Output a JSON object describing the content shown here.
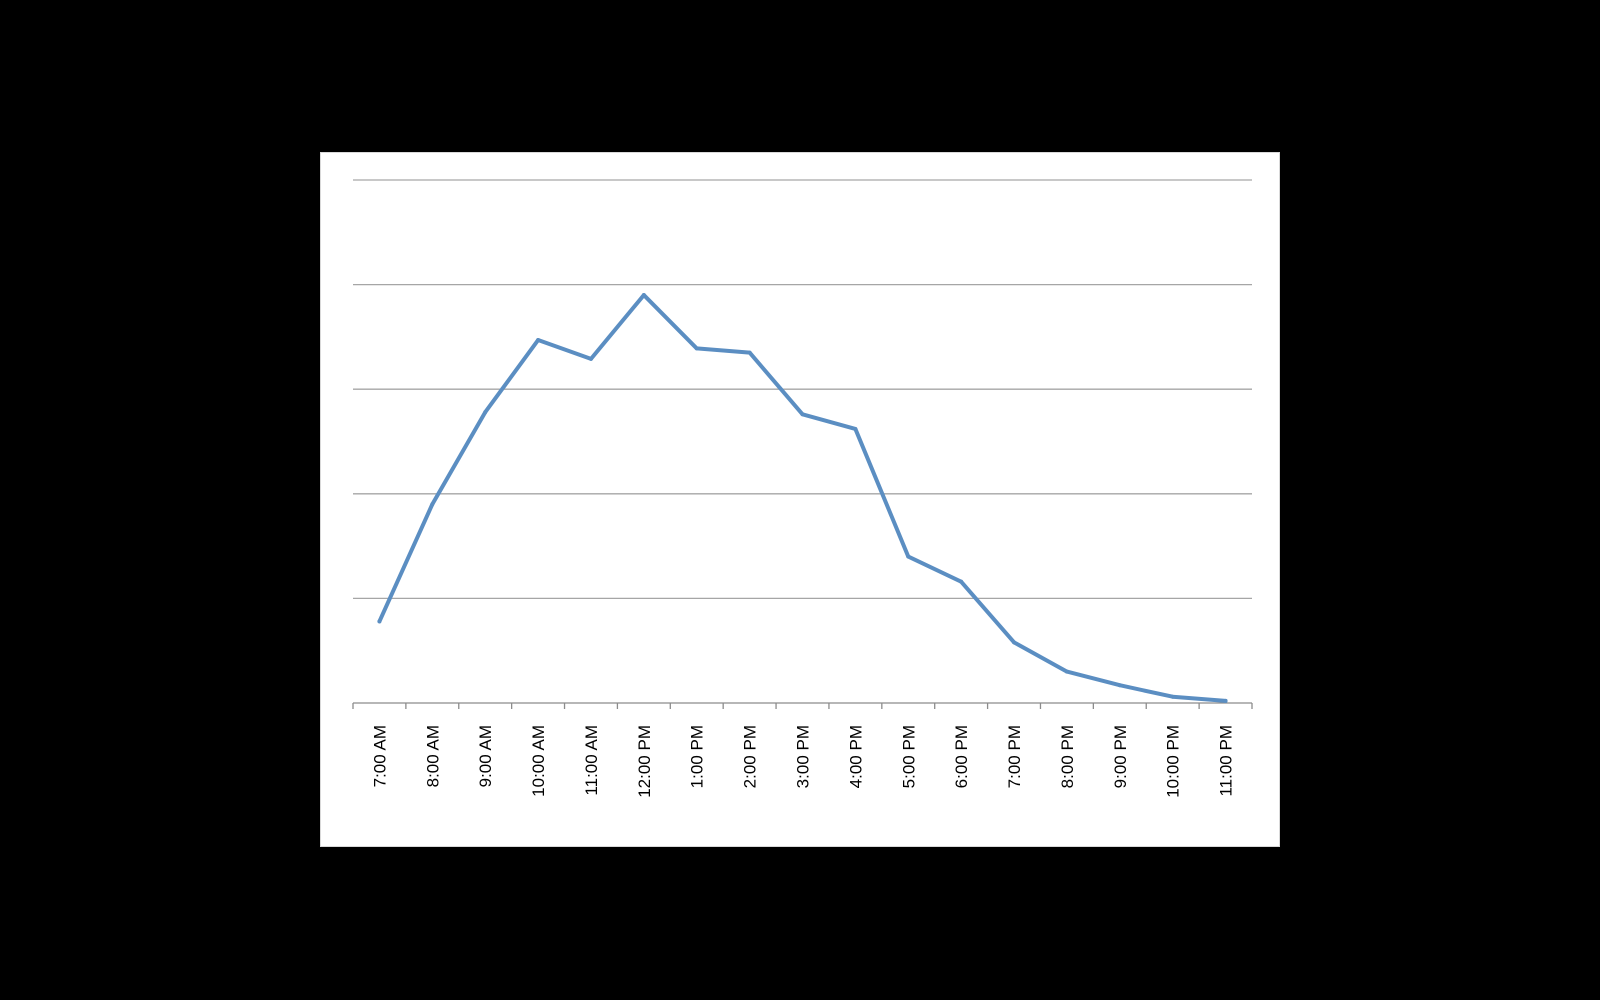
{
  "chart_data": {
    "type": "line",
    "title": "",
    "xlabel": "",
    "ylabel": "",
    "categories": [
      "7:00 AM",
      "8:00 AM",
      "9:00 AM",
      "10:00 AM",
      "11:00 AM",
      "12:00 PM",
      "1:00 PM",
      "2:00 PM",
      "3:00 PM",
      "4:00 PM",
      "5:00 PM",
      "6:00 PM",
      "7:00 PM",
      "8:00 PM",
      "9:00 PM",
      "10:00 PM",
      "11:00 PM"
    ],
    "series": [
      {
        "values": [
          0.78,
          1.9,
          2.78,
          3.47,
          3.29,
          3.9,
          3.39,
          3.35,
          2.76,
          2.62,
          1.4,
          1.16,
          0.58,
          0.3,
          0.17,
          0.06,
          0.02
        ],
        "color": "#5b8ec2"
      }
    ],
    "ylim": [
      0,
      5
    ],
    "ygridlines": [
      1,
      2,
      3,
      4,
      5
    ],
    "y_tick_labels_shown": false,
    "grid": true,
    "legend": "none"
  }
}
